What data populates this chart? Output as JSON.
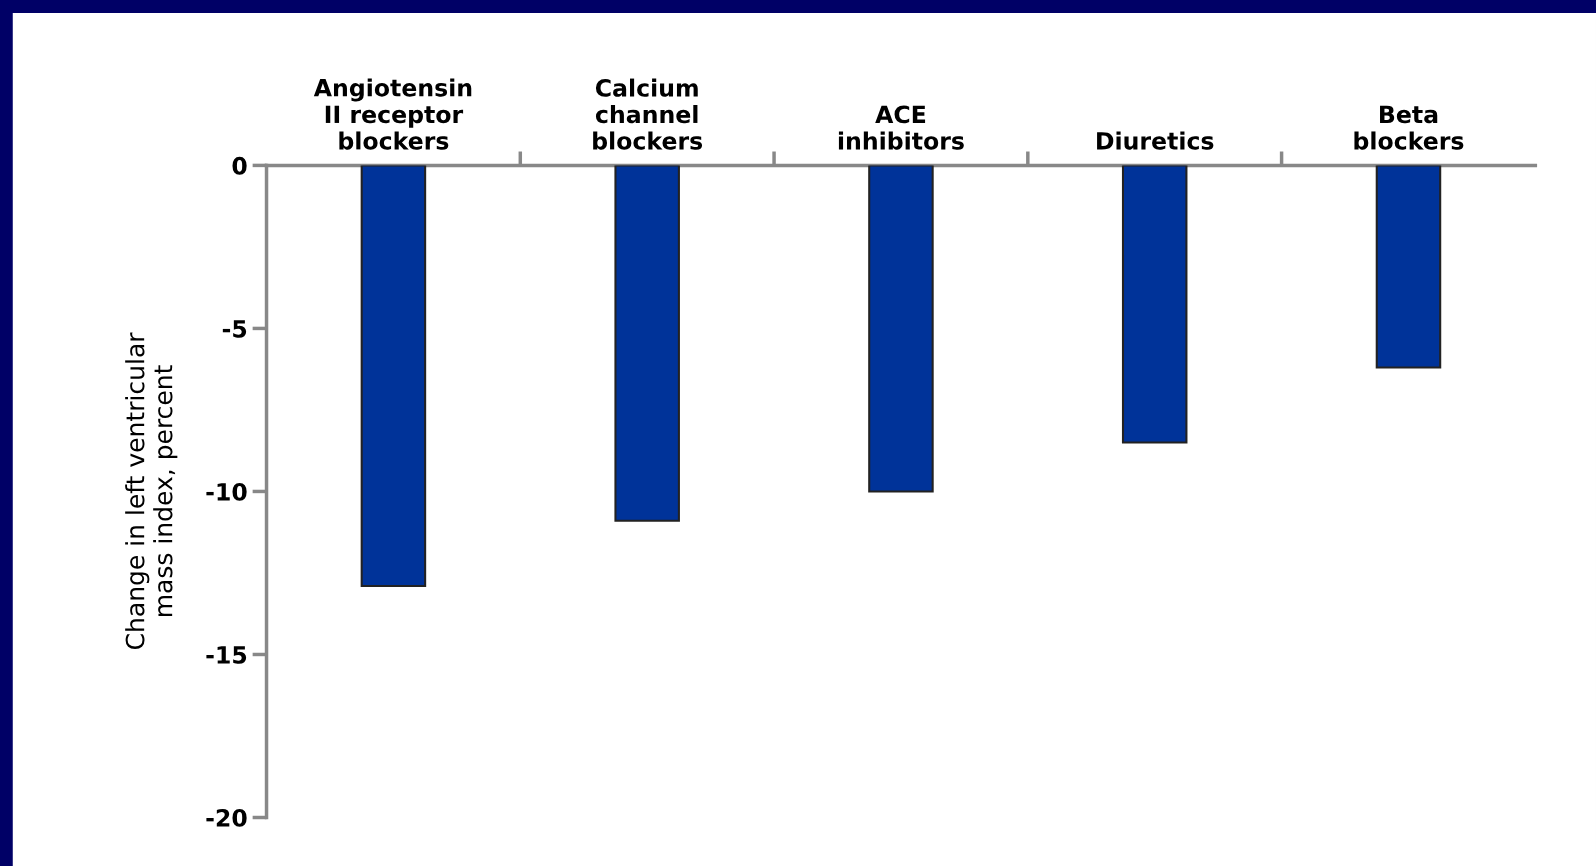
{
  "chart_data": {
    "type": "bar",
    "categories": [
      "Angiotensin\nII receptor\nblockers",
      "Calcium\nchannel\nblockers",
      "ACE\ninhibitors",
      "Diuretics",
      "Beta\nblockers"
    ],
    "values": [
      -12.9,
      -10.9,
      -10.0,
      -8.5,
      -6.2
    ],
    "color": "#003399",
    "ylabel": "Change in left ventricular\nmass index, percent",
    "ylim": [
      -20,
      0
    ],
    "yticks": [
      {
        "value": 0,
        "label": "0"
      },
      {
        "value": -5,
        "label": "-5"
      },
      {
        "value": -10,
        "label": "-10"
      },
      {
        "value": -15,
        "label": "-15"
      },
      {
        "value": -20,
        "label": "-20"
      }
    ],
    "grid": false,
    "legend": false
  }
}
